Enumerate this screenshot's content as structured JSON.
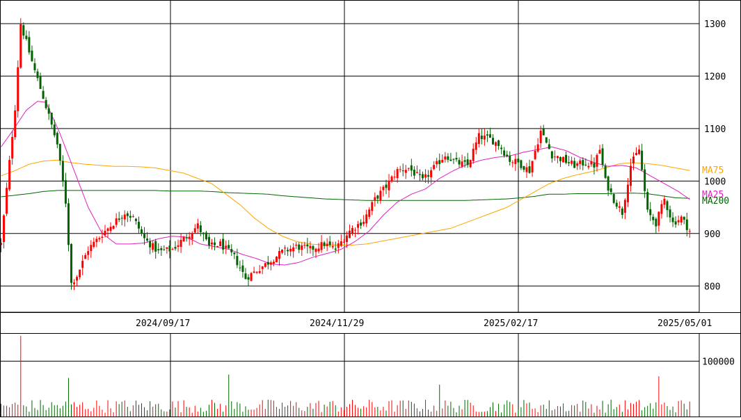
{
  "chart_data": [
    {
      "type": "candlestick",
      "title": "",
      "ylim": [
        750,
        1345
      ],
      "y_ticks": [
        "800",
        "900",
        "1000",
        "1100",
        "1200",
        "1300"
      ],
      "x_labels": [
        "2024/09/17",
        "2024/11/29",
        "2025/02/17",
        "2025/05/01"
      ],
      "grid": true,
      "colors": {
        "up": "#ff0000",
        "down": "#006400",
        "ma25": "#e020c0",
        "ma75": "#ffa500",
        "ma200": "#006400",
        "grid": "#000000"
      },
      "legend": [
        {
          "name": "MA75",
          "color": "#ffa500"
        },
        {
          "name": "MA25",
          "color": "#e020c0"
        },
        {
          "name": "MA200",
          "color": "#006400"
        }
      ],
      "candle_control_points": [
        [
          1,
          880
        ],
        [
          6,
          1140
        ],
        [
          8,
          1300
        ],
        [
          13,
          1210
        ],
        [
          16,
          1160
        ],
        [
          21,
          1070
        ],
        [
          24,
          960
        ],
        [
          26,
          805
        ],
        [
          28,
          820
        ],
        [
          32,
          870
        ],
        [
          38,
          905
        ],
        [
          45,
          940
        ],
        [
          48,
          930
        ],
        [
          52,
          890
        ],
        [
          57,
          865
        ],
        [
          62,
          870
        ],
        [
          67,
          895
        ],
        [
          71,
          915
        ],
        [
          75,
          875
        ],
        [
          79,
          880
        ],
        [
          84,
          855
        ],
        [
          88,
          815
        ],
        [
          92,
          830
        ],
        [
          96,
          845
        ],
        [
          101,
          865
        ],
        [
          106,
          875
        ],
        [
          111,
          870
        ],
        [
          116,
          880
        ],
        [
          120,
          870
        ],
        [
          125,
          905
        ],
        [
          130,
          925
        ],
        [
          134,
          965
        ],
        [
          138,
          990
        ],
        [
          142,
          1020
        ],
        [
          146,
          1025
        ],
        [
          151,
          1000
        ],
        [
          155,
          1025
        ],
        [
          159,
          1050
        ],
        [
          163,
          1035
        ],
        [
          167,
          1030
        ],
        [
          171,
          1085
        ],
        [
          175,
          1080
        ],
        [
          178,
          1070
        ],
        [
          182,
          1040
        ],
        [
          185,
          1035
        ],
        [
          189,
          1020
        ],
        [
          193,
          1095
        ],
        [
          197,
          1050
        ],
        [
          201,
          1040
        ],
        [
          205,
          1030
        ],
        [
          209,
          1035
        ],
        [
          212,
          1030
        ],
        [
          214,
          1060
        ],
        [
          216,
          1000
        ],
        [
          219,
          965
        ],
        [
          222,
          940
        ],
        [
          225,
          1030
        ],
        [
          228,
          1060
        ],
        [
          231,
          940
        ],
        [
          234,
          920
        ],
        [
          237,
          965
        ],
        [
          240,
          920
        ],
        [
          243,
          930
        ],
        [
          246,
          905
        ]
      ],
      "ma25_control_points": [
        [
          1,
          1065
        ],
        [
          5,
          1095
        ],
        [
          10,
          1135
        ],
        [
          14,
          1152
        ],
        [
          17,
          1150
        ],
        [
          22,
          1090
        ],
        [
          27,
          1020
        ],
        [
          32,
          950
        ],
        [
          37,
          900
        ],
        [
          42,
          880
        ],
        [
          47,
          880
        ],
        [
          52,
          882
        ],
        [
          57,
          890
        ],
        [
          62,
          895
        ],
        [
          67,
          893
        ],
        [
          72,
          880
        ],
        [
          77,
          875
        ],
        [
          82,
          870
        ],
        [
          87,
          860
        ],
        [
          92,
          852
        ],
        [
          97,
          842
        ],
        [
          102,
          840
        ],
        [
          107,
          845
        ],
        [
          112,
          855
        ],
        [
          117,
          862
        ],
        [
          122,
          870
        ],
        [
          127,
          885
        ],
        [
          132,
          905
        ],
        [
          137,
          935
        ],
        [
          142,
          960
        ],
        [
          147,
          975
        ],
        [
          152,
          985
        ],
        [
          157,
          1005
        ],
        [
          162,
          1020
        ],
        [
          167,
          1032
        ],
        [
          172,
          1040
        ],
        [
          177,
          1045
        ],
        [
          182,
          1048
        ],
        [
          187,
          1055
        ],
        [
          192,
          1060
        ],
        [
          197,
          1065
        ],
        [
          202,
          1058
        ],
        [
          207,
          1045
        ],
        [
          212,
          1035
        ],
        [
          217,
          1028
        ],
        [
          222,
          1030
        ],
        [
          227,
          1025
        ],
        [
          232,
          1010
        ],
        [
          237,
          995
        ],
        [
          242,
          980
        ],
        [
          246,
          965
        ]
      ],
      "ma75_control_points": [
        [
          1,
          1010
        ],
        [
          6,
          1020
        ],
        [
          11,
          1032
        ],
        [
          16,
          1038
        ],
        [
          21,
          1040
        ],
        [
          26,
          1035
        ],
        [
          31,
          1032
        ],
        [
          36,
          1030
        ],
        [
          41,
          1028
        ],
        [
          46,
          1028
        ],
        [
          51,
          1027
        ],
        [
          56,
          1025
        ],
        [
          61,
          1020
        ],
        [
          66,
          1015
        ],
        [
          71,
          1005
        ],
        [
          76,
          995
        ],
        [
          81,
          975
        ],
        [
          86,
          955
        ],
        [
          91,
          930
        ],
        [
          96,
          910
        ],
        [
          101,
          895
        ],
        [
          106,
          885
        ],
        [
          111,
          880
        ],
        [
          116,
          878
        ],
        [
          121,
          878
        ],
        [
          126,
          878
        ],
        [
          131,
          880
        ],
        [
          136,
          885
        ],
        [
          141,
          890
        ],
        [
          146,
          895
        ],
        [
          151,
          900
        ],
        [
          156,
          905
        ],
        [
          161,
          910
        ],
        [
          166,
          920
        ],
        [
          171,
          930
        ],
        [
          176,
          940
        ],
        [
          181,
          950
        ],
        [
          186,
          965
        ],
        [
          191,
          980
        ],
        [
          196,
          995
        ],
        [
          201,
          1005
        ],
        [
          206,
          1012
        ],
        [
          211,
          1018
        ],
        [
          216,
          1025
        ],
        [
          221,
          1033
        ],
        [
          226,
          1035
        ],
        [
          231,
          1033
        ],
        [
          236,
          1030
        ],
        [
          241,
          1025
        ],
        [
          246,
          1020
        ]
      ],
      "ma200_control_points": [
        [
          1,
          970
        ],
        [
          6,
          973
        ],
        [
          11,
          976
        ],
        [
          16,
          980
        ],
        [
          21,
          982
        ],
        [
          26,
          982
        ],
        [
          31,
          982
        ],
        [
          36,
          982
        ],
        [
          41,
          982
        ],
        [
          46,
          982
        ],
        [
          51,
          982
        ],
        [
          56,
          982
        ],
        [
          61,
          981
        ],
        [
          66,
          981
        ],
        [
          71,
          981
        ],
        [
          76,
          980
        ],
        [
          81,
          978
        ],
        [
          86,
          977
        ],
        [
          91,
          976
        ],
        [
          96,
          975
        ],
        [
          101,
          972
        ],
        [
          106,
          970
        ],
        [
          111,
          968
        ],
        [
          116,
          966
        ],
        [
          121,
          965
        ],
        [
          126,
          964
        ],
        [
          131,
          963
        ],
        [
          136,
          963
        ],
        [
          141,
          963
        ],
        [
          146,
          963
        ],
        [
          151,
          963
        ],
        [
          156,
          963
        ],
        [
          161,
          963
        ],
        [
          166,
          963
        ],
        [
          171,
          964
        ],
        [
          176,
          965
        ],
        [
          181,
          966
        ],
        [
          186,
          968
        ],
        [
          191,
          971
        ],
        [
          196,
          975
        ],
        [
          201,
          975
        ],
        [
          206,
          976
        ],
        [
          211,
          976
        ],
        [
          216,
          976
        ],
        [
          221,
          977
        ],
        [
          226,
          977
        ],
        [
          231,
          976
        ],
        [
          236,
          972
        ],
        [
          241,
          968
        ],
        [
          246,
          967
        ]
      ]
    },
    {
      "type": "bar",
      "title": "",
      "y_ticks": [
        "100000"
      ],
      "ylim": [
        0,
        150000
      ],
      "grid": true,
      "volume_spikes": [
        {
          "i": 8,
          "v": 145000
        },
        {
          "i": 25,
          "v": 70000
        },
        {
          "i": 82,
          "v": 76000
        },
        {
          "i": 157,
          "v": 58000
        },
        {
          "i": 235,
          "v": 73000
        }
      ]
    }
  ]
}
